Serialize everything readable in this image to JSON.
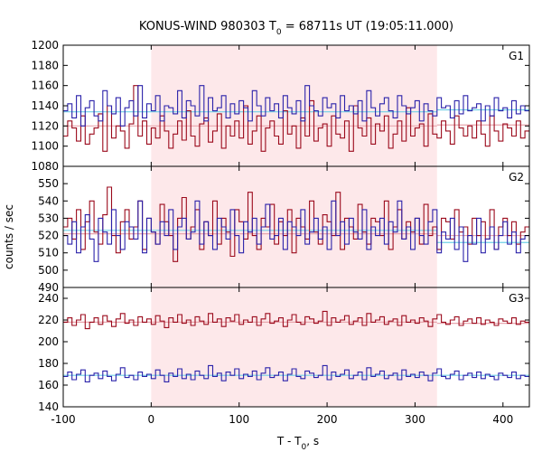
{
  "chart_data": {
    "type": "line",
    "title_main": "KONUS-WIND 980303 T",
    "title_sub": "0",
    "title_rest": " = 68711s UT (19:05:11.000)",
    "xlabel_main": "T - T",
    "xlabel_sub": "0",
    "xlabel_rest": ", s",
    "ylabel": "counts / sec",
    "xlim": [
      -100,
      430
    ],
    "xticks": [
      -100,
      0,
      100,
      200,
      300,
      400
    ],
    "highlight_interval": [
      0,
      325
    ],
    "colors": {
      "red_series": "#9b0a1c",
      "blue_series": "#2b22aa",
      "red_background": "#e8a6ae",
      "blue_background": "#6fd0e6",
      "highlight": "#fde8ea"
    },
    "panels": [
      {
        "label": "G1",
        "ylim": [
          1080,
          1200
        ],
        "yticks": [
          1080,
          1100,
          1120,
          1140,
          1160,
          1180,
          1200
        ],
        "background": {
          "red": {
            "segments": [
              {
                "x": [
                  -100,
                  325
                ],
                "y": 1120
              },
              {
                "x": [
                  325,
                  430
                ],
                "y": 1121
              }
            ]
          },
          "blue": {
            "segments": [
              {
                "x": [
                  -100,
                  325
                ],
                "y": 1134
              },
              {
                "x": [
                  325,
                  430
                ],
                "y": 1136
              }
            ]
          }
        }
      },
      {
        "label": "G2",
        "ylim": [
          490,
          560
        ],
        "yticks": [
          490,
          500,
          510,
          520,
          530,
          540,
          550
        ],
        "background": {
          "red": {
            "segments": [
              {
                "x": [
                  -100,
                  325
                ],
                "y": 521
              },
              {
                "x": [
                  325,
                  430
                ],
                "y": 520
              }
            ]
          },
          "blue": {
            "segments": [
              {
                "x": [
                  -100,
                  325
                ],
                "y": 523
              },
              {
                "x": [
                  325,
                  430
                ],
                "y": 516
              }
            ]
          }
        }
      },
      {
        "label": "G3",
        "ylim": [
          140,
          250
        ],
        "yticks": [
          140,
          160,
          180,
          200,
          220,
          240
        ],
        "background": {
          "red": {
            "segments": [
              {
                "x": [
                  -100,
                  325
                ],
                "y": 218
              },
              {
                "x": [
                  325,
                  430
                ],
                "y": 217
              }
            ]
          },
          "blue": {
            "segments": [
              {
                "x": [
                  -100,
                  325
                ],
                "y": 169
              },
              {
                "x": [
                  325,
                  430
                ],
                "y": 169
              }
            ]
          }
        }
      }
    ],
    "series_step": {
      "x_start": -100,
      "x_end": 430,
      "step": 5,
      "G1": {
        "red": [
          1110,
          1125,
          1118,
          1105,
          1130,
          1102,
          1112,
          1118,
          1132,
          1095,
          1140,
          1108,
          1120,
          1115,
          1098,
          1122,
          1160,
          1110,
          1125,
          1102,
          1118,
          1108,
          1130,
          1115,
          1098,
          1112,
          1125,
          1106,
          1135,
          1110,
          1100,
          1122,
          1128,
          1104,
          1115,
          1132,
          1098,
          1120,
          1110,
          1125,
          1108,
          1140,
          1102,
          1115,
          1130,
          1095,
          1118,
          1125,
          1110,
          1102,
          1135,
          1112,
          1120,
          1098,
          1128,
          1110,
          1145,
          1105,
          1118,
          1122,
          1100,
          1130,
          1112,
          1108,
          1125,
          1095,
          1140,
          1118,
          1110,
          1128,
          1102,
          1122,
          1115,
          1130,
          1098,
          1112,
          1125,
          1105,
          1138,
          1110,
          1118,
          1122,
          1100,
          1132,
          1112,
          1108,
          1125,
          1115,
          1102,
          1130,
          1118,
          1110,
          1120,
          1108,
          1125,
          1112,
          1100,
          1130,
          1115,
          1105,
          1122,
          1118,
          1110,
          1125,
          1108,
          1115
        ],
        "blue": [
          1135,
          1142,
          1128,
          1150,
          1120,
          1138,
          1145,
          1130,
          1125,
          1155,
          1140,
          1132,
          1148,
          1120,
          1138,
          1145,
          1130,
          1160,
          1128,
          1142,
          1135,
          1150,
          1125,
          1140,
          1138,
          1132,
          1155,
          1128,
          1145,
          1140,
          1130,
          1160,
          1125,
          1148,
          1135,
          1138,
          1150,
          1128,
          1142,
          1132,
          1145,
          1138,
          1125,
          1155,
          1140,
          1130,
          1148,
          1135,
          1142,
          1128,
          1150,
          1138,
          1132,
          1145,
          1125,
          1160,
          1140,
          1135,
          1130,
          1148,
          1138,
          1142,
          1128,
          1150,
          1135,
          1140,
          1132,
          1145,
          1125,
          1155,
          1138,
          1130,
          1142,
          1148,
          1135,
          1128,
          1150,
          1140,
          1132,
          1138,
          1145,
          1125,
          1142,
          1135,
          1130,
          1148,
          1138,
          1140,
          1128,
          1145,
          1132,
          1150,
          1135,
          1138,
          1142,
          1125,
          1140,
          1130,
          1148,
          1135,
          1138,
          1128,
          1145,
          1132,
          1140,
          1135
        ]
      },
      "G2": {
        "red": [
          525,
          530,
          518,
          535,
          512,
          528,
          540,
          522,
          515,
          532,
          548,
          520,
          510,
          528,
          535,
          518,
          525,
          540,
          512,
          530,
          522,
          515,
          538,
          528,
          520,
          505,
          530,
          542,
          518,
          525,
          535,
          512,
          528,
          520,
          540,
          515,
          530,
          522,
          508,
          535,
          528,
          518,
          545,
          520,
          512,
          530,
          525,
          538,
          515,
          528,
          520,
          535,
          510,
          530,
          525,
          518,
          540,
          522,
          515,
          532,
          528,
          520,
          545,
          512,
          530,
          525,
          518,
          538,
          522,
          515,
          530,
          528,
          520,
          540,
          512,
          525,
          535,
          518,
          528,
          522,
          530,
          515,
          538,
          520,
          525,
          512,
          530,
          528,
          518,
          535,
          522,
          525,
          515,
          530,
          520,
          528,
          518,
          535,
          512,
          525,
          530,
          520,
          528,
          515,
          522,
          525
        ],
        "blue": [
          520,
          515,
          528,
          510,
          525,
          532,
          518,
          505,
          530,
          522,
          515,
          535,
          520,
          512,
          528,
          525,
          518,
          540,
          510,
          530,
          522,
          515,
          528,
          520,
          535,
          512,
          525,
          530,
          518,
          522,
          540,
          515,
          528,
          520,
          512,
          530,
          525,
          518,
          535,
          520,
          510,
          528,
          522,
          530,
          515,
          525,
          538,
          518,
          520,
          530,
          512,
          528,
          525,
          520,
          535,
          515,
          522,
          530,
          518,
          525,
          512,
          540,
          520,
          528,
          515,
          530,
          522,
          518,
          535,
          512,
          525,
          520,
          530,
          515,
          528,
          522,
          540,
          518,
          525,
          512,
          530,
          520,
          515,
          528,
          535,
          510,
          522,
          518,
          530,
          512,
          525,
          505,
          520,
          515,
          530,
          510,
          518,
          525,
          512,
          520,
          528,
          515,
          522,
          510,
          518,
          520
        ]
      },
      "G3": {
        "red": [
          218,
          222,
          215,
          220,
          225,
          212,
          218,
          222,
          216,
          224,
          219,
          214,
          221,
          226,
          217,
          220,
          215,
          223,
          218,
          221,
          216,
          224,
          219,
          213,
          222,
          218,
          225,
          217,
          220,
          215,
          223,
          219,
          216,
          226,
          218,
          221,
          214,
          222,
          219,
          225,
          216,
          220,
          218,
          223,
          215,
          221,
          226,
          217,
          219,
          222,
          214,
          220,
          225,
          218,
          216,
          223,
          221,
          217,
          219,
          228,
          215,
          222,
          218,
          220,
          224,
          216,
          219,
          222,
          215,
          226,
          218,
          220,
          223,
          216,
          219,
          221,
          215,
          224,
          218,
          220,
          217,
          222,
          219,
          214,
          221,
          225,
          218,
          216,
          220,
          223,
          215,
          219,
          221,
          217,
          222,
          216,
          220,
          218,
          215,
          221,
          219,
          217,
          222,
          216,
          219,
          218
        ],
        "blue": [
          168,
          172,
          165,
          170,
          174,
          163,
          169,
          171,
          166,
          173,
          168,
          164,
          170,
          176,
          167,
          169,
          165,
          172,
          168,
          170,
          166,
          174,
          169,
          163,
          171,
          168,
          175,
          166,
          170,
          165,
          173,
          169,
          166,
          178,
          168,
          171,
          164,
          172,
          169,
          175,
          166,
          170,
          168,
          173,
          165,
          171,
          176,
          167,
          169,
          172,
          164,
          170,
          175,
          168,
          166,
          173,
          171,
          167,
          169,
          178,
          165,
          172,
          168,
          170,
          174,
          166,
          169,
          172,
          165,
          176,
          168,
          170,
          173,
          166,
          169,
          171,
          165,
          174,
          168,
          170,
          167,
          172,
          169,
          164,
          171,
          175,
          168,
          166,
          170,
          173,
          165,
          169,
          171,
          167,
          172,
          166,
          170,
          168,
          165,
          171,
          169,
          167,
          172,
          166,
          169,
          168
        ]
      }
    }
  }
}
